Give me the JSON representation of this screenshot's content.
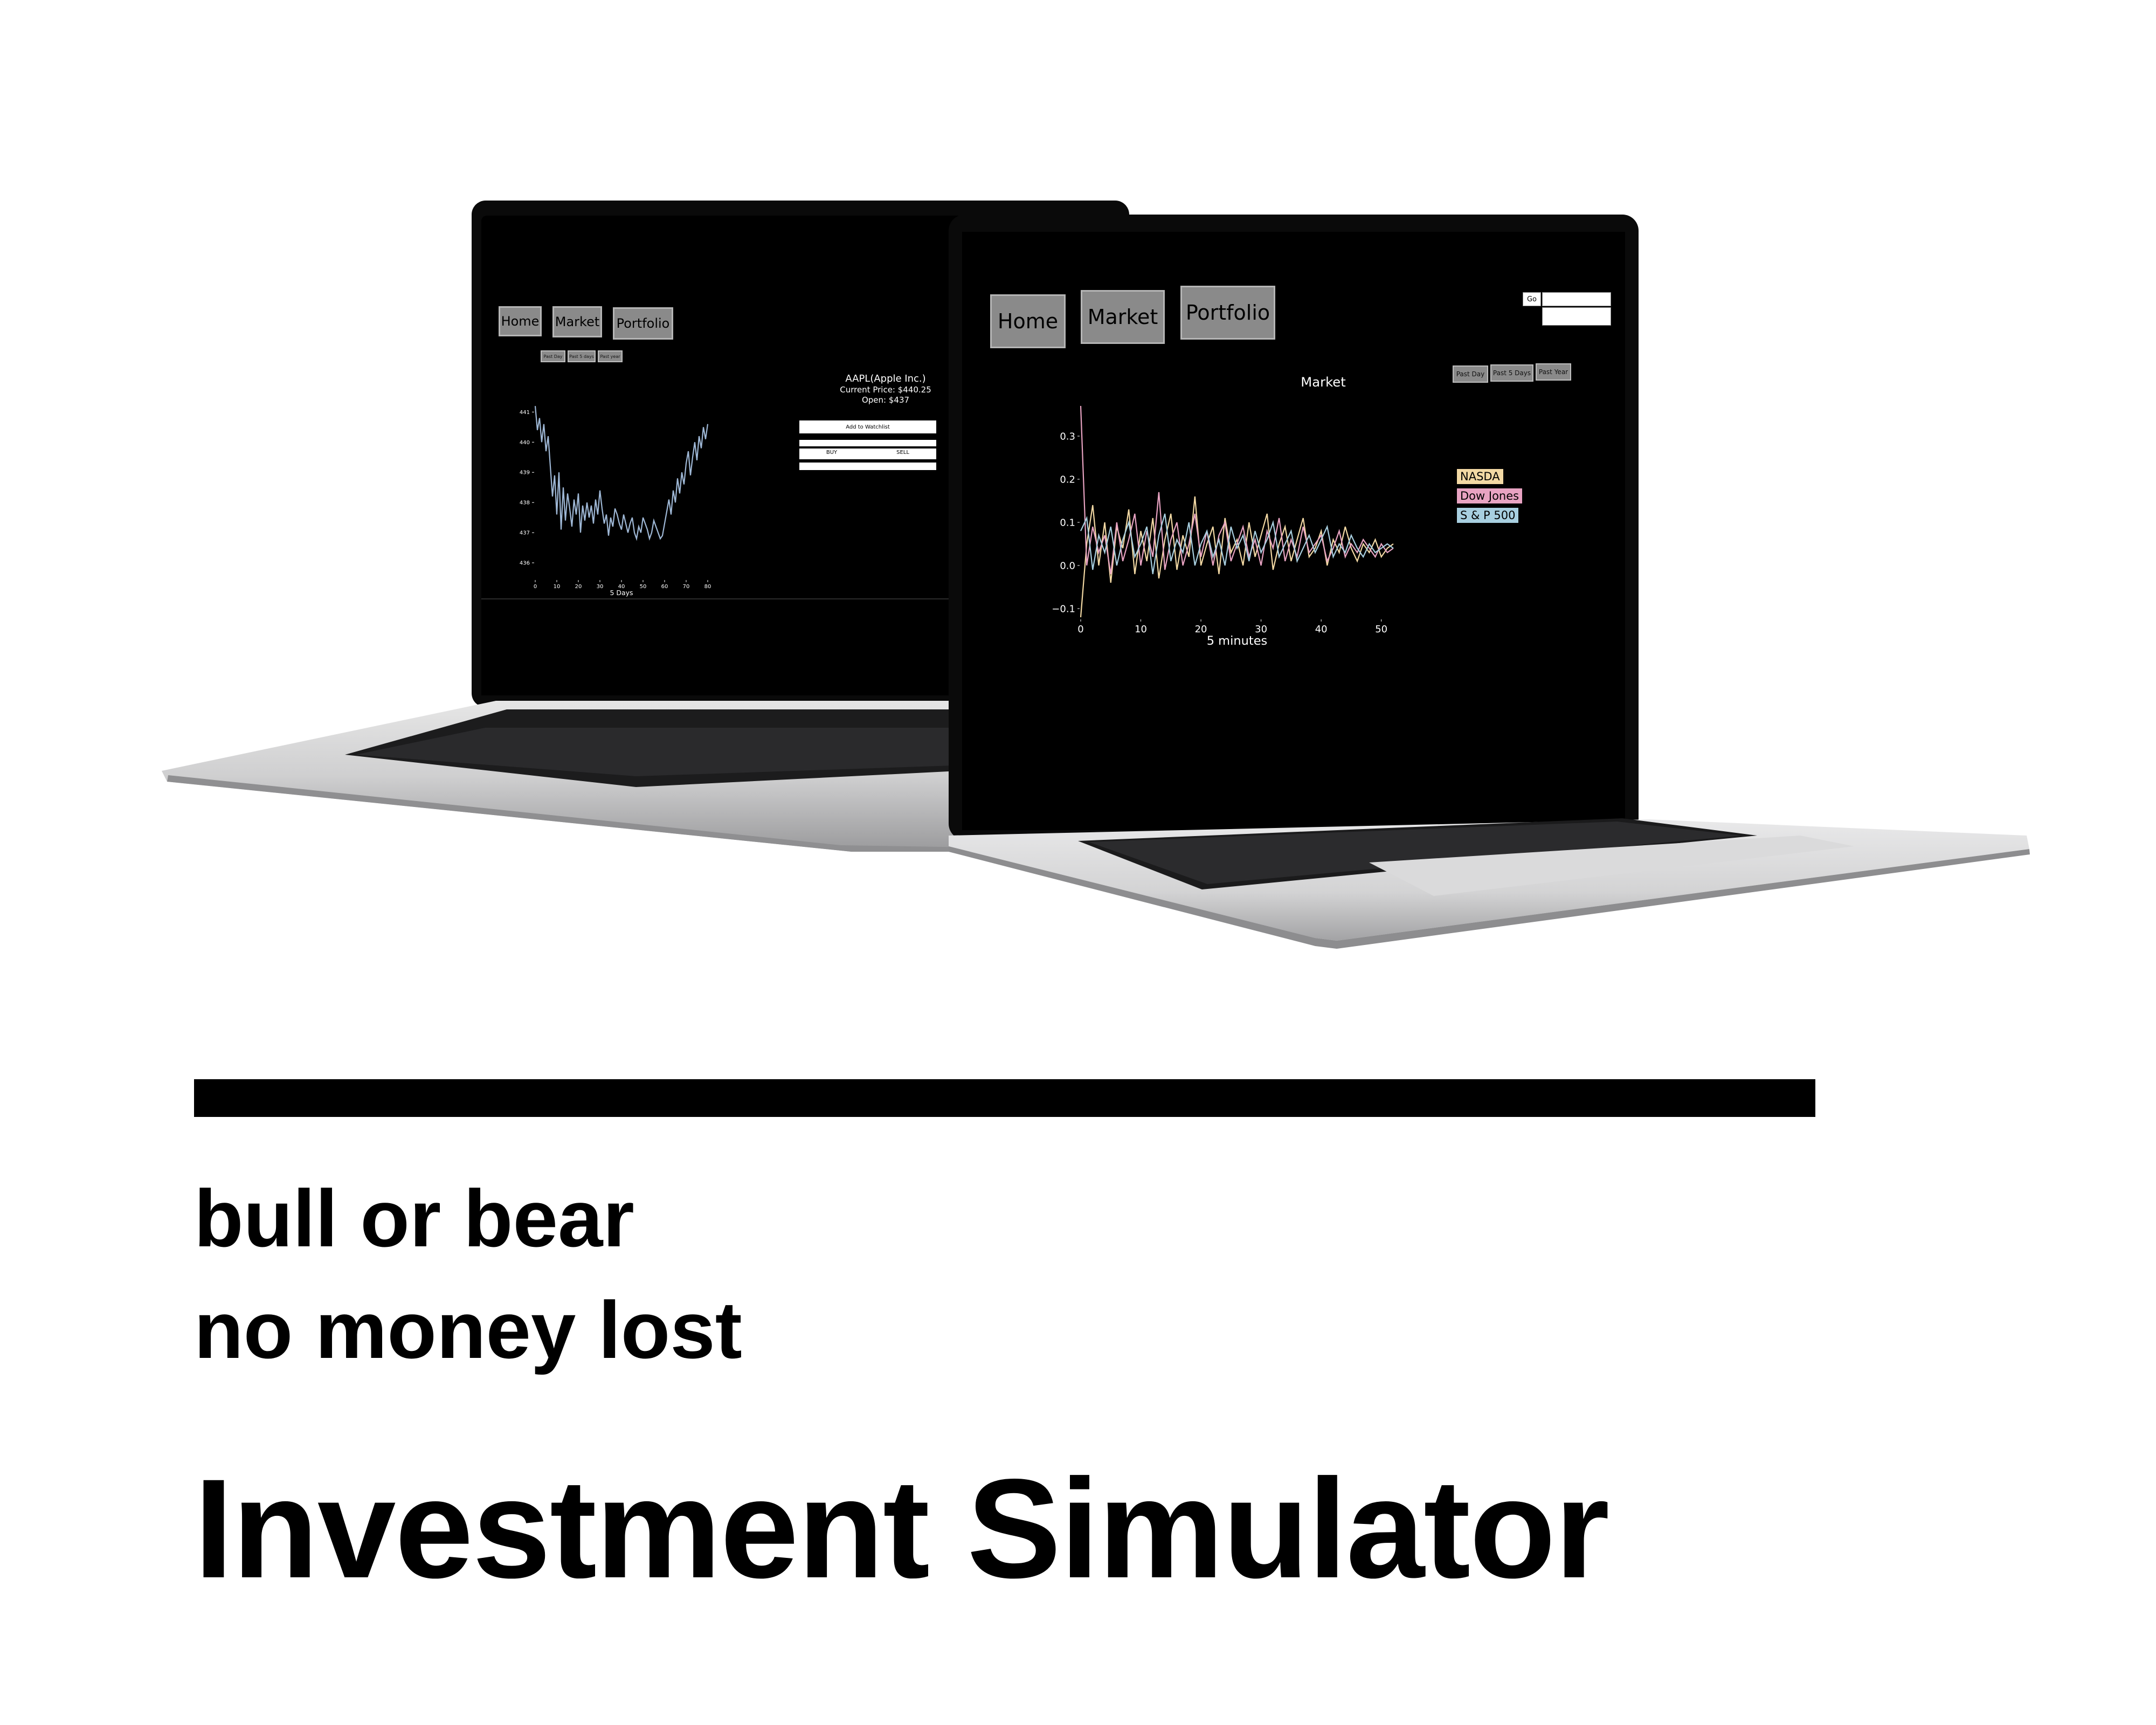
{
  "left_screen": {
    "nav": [
      "Home",
      "Market",
      "Portfolio"
    ],
    "range_buttons": [
      "Past Day",
      "Past 5 days",
      "Past year"
    ],
    "stock": {
      "name": "AAPL(Apple Inc.)",
      "current_price": "Current Price: $440.25",
      "open": "Open: $437"
    },
    "actions": {
      "watchlist": "Add to Watchlist",
      "buy": "BUY",
      "sell": "SELL"
    }
  },
  "right_screen": {
    "nav": [
      "Home",
      "Market",
      "Portfolio"
    ],
    "search": {
      "button": "Go",
      "value": ""
    },
    "range_buttons": [
      "Past Day",
      "Past 5 Days",
      "Past Year"
    ],
    "legend": [
      {
        "label": "NASDA",
        "color": "#f3d9a4"
      },
      {
        "label": "Dow Jones",
        "color": "#e8a3c2"
      },
      {
        "label": "S & P 500",
        "color": "#a8cfe0"
      }
    ]
  },
  "tagline": [
    "bull or bear",
    "no money lost"
  ],
  "title": "Investment Simulator",
  "chart_data": [
    {
      "type": "line",
      "title": "",
      "xlabel": "5 Days",
      "ylabel": "",
      "xlim": [
        0,
        80
      ],
      "ylim": [
        435.5,
        441.4
      ],
      "x_ticks": [
        0,
        10,
        20,
        30,
        40,
        50,
        60,
        70,
        80
      ],
      "y_ticks": [
        436,
        437,
        438,
        439,
        440,
        441
      ],
      "series": [
        {
          "color": "#9fb8d6",
          "x": [
            0,
            1,
            2,
            3,
            4,
            5,
            6,
            7,
            8,
            9,
            10,
            11,
            12,
            13,
            14,
            15,
            16,
            17,
            18,
            19,
            20,
            21,
            22,
            23,
            24,
            25,
            26,
            27,
            28,
            29,
            30,
            31,
            32,
            33,
            34,
            35,
            36,
            37,
            38,
            39,
            40,
            41,
            42,
            43,
            44,
            45,
            46,
            47,
            48,
            49,
            50,
            51,
            52,
            53,
            54,
            55,
            56,
            57,
            58,
            59,
            60,
            61,
            62,
            63,
            64,
            65,
            66,
            67,
            68,
            69,
            70,
            71,
            72,
            73,
            74,
            75,
            76,
            77,
            78,
            79,
            80
          ],
          "values": [
            441.2,
            440.4,
            440.8,
            440.0,
            440.6,
            439.7,
            440.2,
            439.2,
            438.2,
            438.9,
            437.6,
            439.0,
            437.1,
            438.5,
            437.4,
            438.3,
            437.8,
            437.2,
            438.1,
            437.6,
            438.3,
            437.0,
            437.9,
            437.4,
            438.0,
            437.5,
            437.9,
            437.3,
            438.1,
            437.6,
            438.4,
            437.8,
            437.3,
            437.6,
            436.9,
            437.5,
            437.2,
            437.8,
            437.6,
            437.3,
            437.1,
            437.6,
            437.3,
            437.0,
            437.3,
            437.5,
            437.0,
            436.8,
            437.2,
            437.0,
            437.5,
            437.3,
            437.1,
            436.8,
            437.0,
            437.4,
            437.2,
            437.0,
            436.8,
            436.9,
            437.3,
            437.7,
            438.1,
            437.6,
            438.4,
            438.0,
            438.8,
            438.3,
            439.0,
            438.6,
            439.3,
            439.7,
            438.9,
            439.5,
            440.0,
            439.4,
            440.2,
            439.8,
            440.5,
            440.1,
            440.6
          ]
        }
      ]
    },
    {
      "type": "line",
      "title": "Market",
      "xlabel": "5 minutes",
      "ylabel": "",
      "xlim": [
        0,
        52
      ],
      "ylim": [
        -0.12,
        0.38
      ],
      "x_ticks": [
        0,
        10,
        20,
        30,
        40,
        50
      ],
      "y_ticks": [
        -0.1,
        0.0,
        0.1,
        0.2,
        0.3
      ],
      "series": [
        {
          "name": "NASDA",
          "color": "#f3d9a4",
          "x": [
            0,
            1,
            2,
            3,
            4,
            5,
            6,
            7,
            8,
            9,
            10,
            11,
            12,
            13,
            14,
            15,
            16,
            17,
            18,
            19,
            20,
            21,
            22,
            23,
            24,
            25,
            26,
            27,
            28,
            29,
            30,
            31,
            32,
            33,
            34,
            35,
            36,
            37,
            38,
            39,
            40,
            41,
            42,
            43,
            44,
            45,
            46,
            47,
            48,
            49,
            50,
            51,
            52
          ],
          "values": [
            -0.12,
            0.05,
            0.14,
            0.0,
            0.1,
            -0.04,
            0.09,
            0.04,
            0.13,
            -0.02,
            0.08,
            0.01,
            0.11,
            -0.03,
            0.06,
            0.12,
            -0.01,
            0.07,
            0.02,
            0.16,
            0.0,
            0.05,
            0.09,
            -0.02,
            0.11,
            0.03,
            0.06,
            0.0,
            0.1,
            0.02,
            0.07,
            0.12,
            -0.01,
            0.05,
            0.09,
            0.01,
            0.06,
            0.11,
            0.02,
            0.04,
            0.08,
            0.0,
            0.06,
            0.03,
            0.09,
            0.04,
            0.01,
            0.05,
            0.03,
            0.06,
            0.02,
            0.04,
            0.05
          ]
        },
        {
          "name": "Dow Jones",
          "color": "#e8a3c2",
          "x": [
            0,
            1,
            2,
            3,
            4,
            5,
            6,
            7,
            8,
            9,
            10,
            11,
            12,
            13,
            14,
            15,
            16,
            17,
            18,
            19,
            20,
            21,
            22,
            23,
            24,
            25,
            26,
            27,
            28,
            29,
            30,
            31,
            32,
            33,
            34,
            35,
            36,
            37,
            38,
            39,
            40,
            41,
            42,
            43,
            44,
            45,
            46,
            47,
            48,
            49,
            50,
            51,
            52
          ],
          "values": [
            0.37,
            0.0,
            0.09,
            0.03,
            0.07,
            -0.02,
            0.1,
            0.01,
            0.06,
            0.12,
            0.0,
            0.08,
            0.02,
            0.17,
            -0.01,
            0.06,
            0.1,
            0.0,
            0.05,
            0.12,
            0.02,
            0.08,
            0.0,
            0.07,
            0.1,
            0.01,
            0.05,
            0.09,
            0.02,
            0.06,
            0.0,
            0.08,
            0.04,
            0.11,
            0.01,
            0.06,
            0.02,
            0.09,
            0.03,
            0.05,
            0.07,
            0.01,
            0.04,
            0.08,
            0.02,
            0.05,
            0.03,
            0.06,
            0.04,
            0.02,
            0.05,
            0.03,
            0.04
          ]
        },
        {
          "name": "S & P 500",
          "color": "#a8cfe0",
          "x": [
            0,
            1,
            2,
            3,
            4,
            5,
            6,
            7,
            8,
            9,
            10,
            11,
            12,
            13,
            14,
            15,
            16,
            17,
            18,
            19,
            20,
            21,
            22,
            23,
            24,
            25,
            26,
            27,
            28,
            29,
            30,
            31,
            32,
            33,
            34,
            35,
            36,
            37,
            38,
            39,
            40,
            41,
            42,
            43,
            44,
            45,
            46,
            47,
            48,
            49,
            50,
            51,
            52
          ],
          "values": [
            0.08,
            0.11,
            -0.01,
            0.07,
            0.03,
            0.09,
            0.0,
            0.06,
            0.1,
            0.02,
            0.05,
            0.09,
            -0.02,
            0.07,
            0.12,
            0.01,
            0.06,
            0.03,
            0.1,
            0.0,
            0.05,
            0.08,
            0.02,
            0.06,
            0.0,
            0.09,
            0.04,
            0.07,
            0.01,
            0.08,
            0.03,
            0.06,
            0.1,
            0.02,
            0.05,
            0.08,
            0.01,
            0.04,
            0.07,
            0.03,
            0.06,
            0.09,
            0.02,
            0.05,
            0.03,
            0.07,
            0.04,
            0.02,
            0.05,
            0.03,
            0.04,
            0.05,
            0.04
          ]
        }
      ]
    }
  ]
}
